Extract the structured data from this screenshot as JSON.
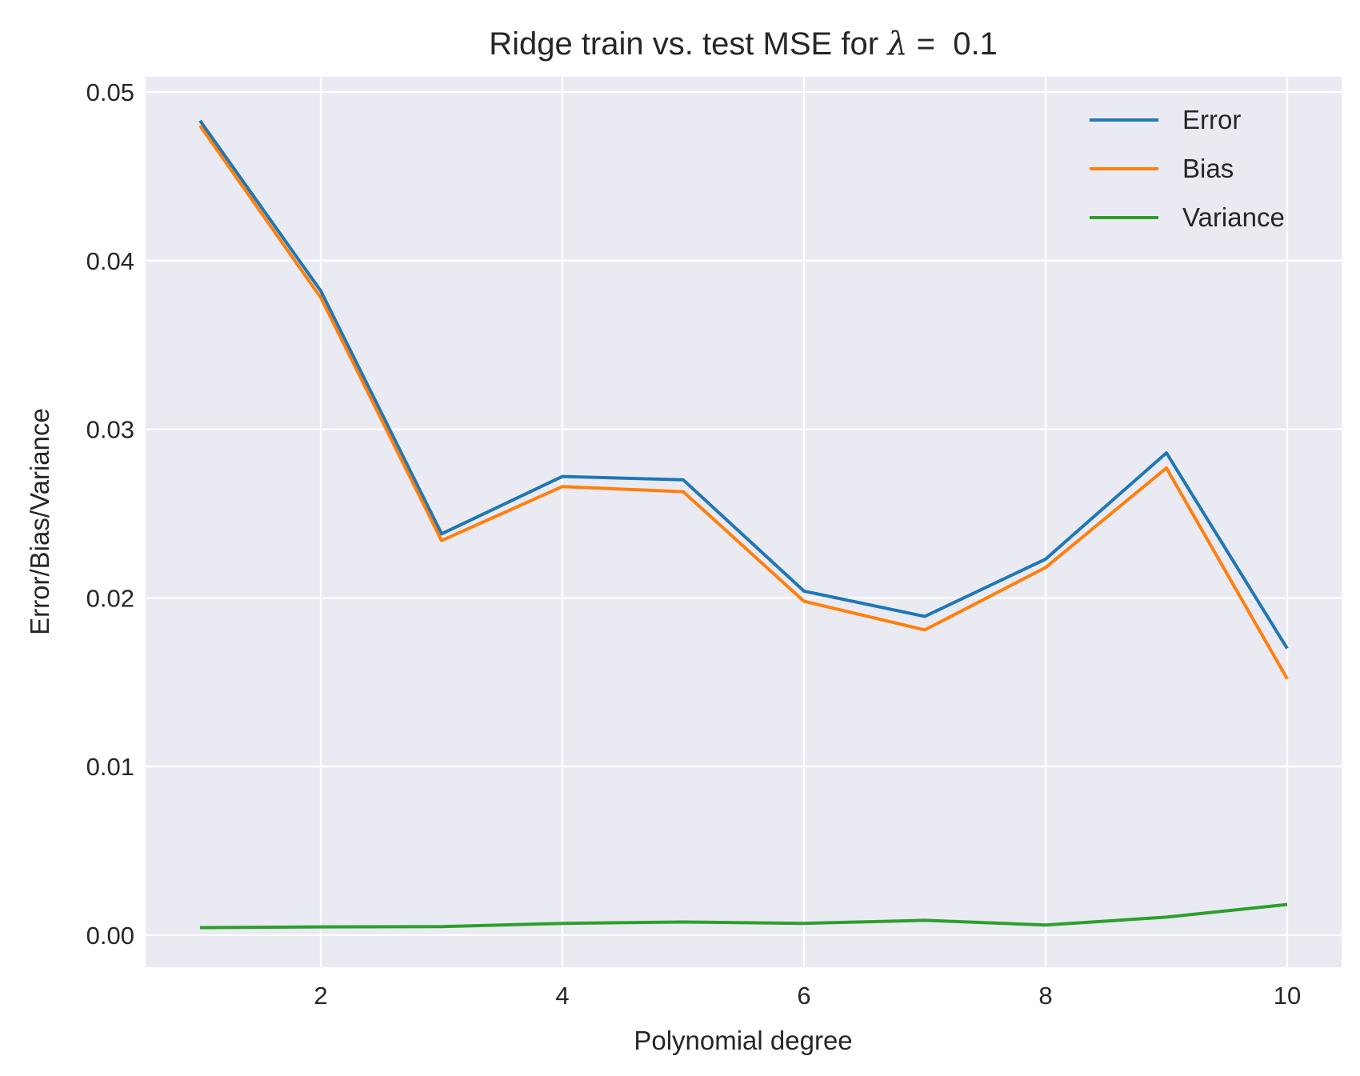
{
  "chart_data": {
    "type": "line",
    "title": {
      "prefix": "Ridge train vs. test MSE for ",
      "symbol": "λ",
      "suffix": " =  0.1"
    },
    "xlabel": "Polynomial degree",
    "ylabel": "Error/Bias/Variance",
    "x": [
      1,
      2,
      3,
      4,
      5,
      6,
      7,
      8,
      9,
      10
    ],
    "xlim": [
      0.55,
      10.45
    ],
    "ylim": [
      -0.0019,
      0.0509
    ],
    "xticks": [
      2,
      4,
      6,
      8,
      10
    ],
    "xtick_labels": [
      "2",
      "4",
      "6",
      "8",
      "10"
    ],
    "yticks": [
      0.0,
      0.01,
      0.02,
      0.03,
      0.04,
      0.05
    ],
    "ytick_labels": [
      "0.00",
      "0.01",
      "0.02",
      "0.03",
      "0.04",
      "0.05"
    ],
    "grid": true,
    "legend_position": "top-right",
    "series": [
      {
        "name": "Error",
        "color": "#1f77b4",
        "values": [
          0.0483,
          0.0382,
          0.0238,
          0.0272,
          0.027,
          0.0204,
          0.0189,
          0.0223,
          0.0286,
          0.017
        ]
      },
      {
        "name": "Bias",
        "color": "#ff7f0e",
        "values": [
          0.048,
          0.0378,
          0.0234,
          0.0266,
          0.0263,
          0.0198,
          0.0181,
          0.0218,
          0.0277,
          0.0152
        ]
      },
      {
        "name": "Variance",
        "color": "#2ca02c",
        "values": [
          0.00045,
          0.00049,
          0.00051,
          0.0007,
          0.00078,
          0.0007,
          0.00088,
          0.0006,
          0.00107,
          0.00182
        ]
      }
    ]
  }
}
